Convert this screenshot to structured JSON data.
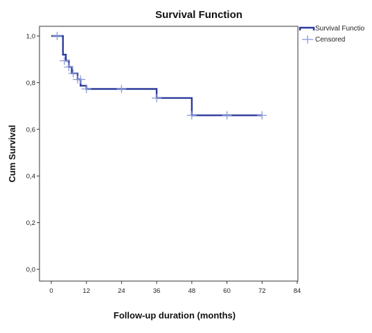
{
  "chart_data": {
    "type": "line",
    "title": "Survival Function",
    "xlabel": "Follow-up duration (months)",
    "ylabel": "Cum Survival",
    "xlim": [
      0,
      84
    ],
    "ylim": [
      0,
      1.05
    ],
    "x_ticks": [
      0,
      12,
      24,
      36,
      48,
      60,
      72,
      84
    ],
    "x_tick_labels": [
      "0",
      "12",
      "24",
      "36",
      "48",
      "60",
      "72",
      "84"
    ],
    "y_ticks": [
      0.0,
      0.2,
      0.4,
      0.6,
      0.8,
      1.0
    ],
    "y_tick_labels": [
      "0,0",
      "0,2",
      "0,4",
      "0,6",
      "0,8",
      "1,0"
    ],
    "grid": false,
    "legend_position": "top-right",
    "series": [
      {
        "name": "Survival Functio",
        "color": "#2b3a9a",
        "step_x": [
          0,
          4,
          5,
          6,
          7,
          9,
          10,
          12,
          36,
          48,
          72
        ],
        "step_y": [
          1.0,
          0.92,
          0.894,
          0.867,
          0.84,
          0.814,
          0.787,
          0.773,
          0.734,
          0.66,
          0.66
        ]
      },
      {
        "name": "Censored",
        "color": "#8a9bd8",
        "marker": "plus",
        "x": [
          2,
          4.5,
          6,
          7.5,
          9,
          10,
          12,
          24,
          36,
          48,
          60,
          72
        ],
        "y": [
          1.0,
          0.894,
          0.867,
          0.84,
          0.814,
          0.814,
          0.773,
          0.773,
          0.734,
          0.66,
          0.66,
          0.66
        ]
      }
    ]
  }
}
